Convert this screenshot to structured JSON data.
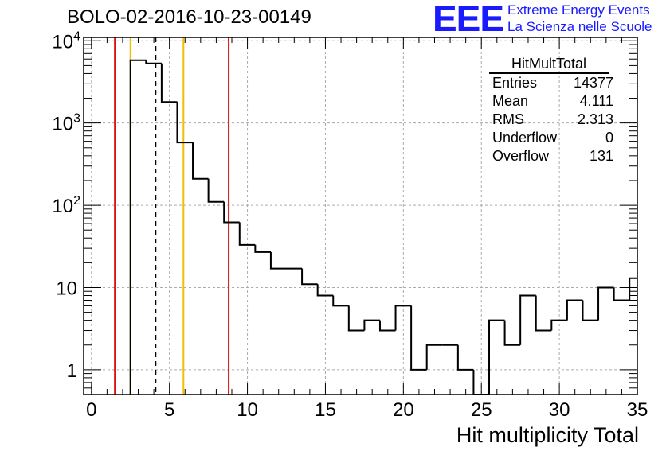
{
  "header": {
    "title": "BOLO-02-2016-10-23-00149",
    "logo_text": "EEE",
    "logo_line1": "Extreme Energy Events",
    "logo_line2": "La Scienza nelle Scuole"
  },
  "stats_box": {
    "title": "HitMultTotal",
    "rows": [
      {
        "key": "Entries",
        "value": "14377"
      },
      {
        "key": "Mean",
        "value": "4.111"
      },
      {
        "key": "RMS",
        "value": "2.313"
      },
      {
        "key": "Underflow",
        "value": "0"
      },
      {
        "key": "Overflow",
        "value": "131"
      }
    ]
  },
  "chart_data": {
    "type": "histogram",
    "title": "BOLO-02-2016-10-23-00149",
    "xlabel": "Hit multiplicity Total",
    "ylabel": "",
    "xlim": [
      -0.5,
      35
    ],
    "ylim": [
      0.5,
      11000
    ],
    "y_scale": "log",
    "grid": true,
    "line_color": "#000000",
    "x_ticks": [
      0,
      5,
      10,
      15,
      20,
      25,
      30,
      35
    ],
    "y_ticks": [
      {
        "value": 1,
        "label": "1"
      },
      {
        "value": 10,
        "label": "10"
      },
      {
        "value": 100,
        "label": "10^2"
      },
      {
        "value": 1000,
        "label": "10^3"
      },
      {
        "value": 10000,
        "label": "10^4"
      }
    ],
    "bin_width": 1,
    "bin_edges_start": 2.5,
    "bins": [
      {
        "x": 3,
        "count": 5800
      },
      {
        "x": 4,
        "count": 5300
      },
      {
        "x": 5,
        "count": 1800
      },
      {
        "x": 6,
        "count": 580
      },
      {
        "x": 7,
        "count": 210
      },
      {
        "x": 8,
        "count": 110
      },
      {
        "x": 9,
        "count": 62
      },
      {
        "x": 10,
        "count": 33
      },
      {
        "x": 11,
        "count": 27
      },
      {
        "x": 12,
        "count": 17
      },
      {
        "x": 13,
        "count": 17
      },
      {
        "x": 14,
        "count": 11
      },
      {
        "x": 15,
        "count": 8
      },
      {
        "x": 16,
        "count": 6
      },
      {
        "x": 17,
        "count": 3
      },
      {
        "x": 18,
        "count": 4
      },
      {
        "x": 19,
        "count": 3
      },
      {
        "x": 20,
        "count": 6
      },
      {
        "x": 21,
        "count": 1
      },
      {
        "x": 22,
        "count": 2
      },
      {
        "x": 23,
        "count": 2
      },
      {
        "x": 24,
        "count": 1
      },
      {
        "x": 25,
        "count": 0
      },
      {
        "x": 26,
        "count": 4
      },
      {
        "x": 27,
        "count": 2
      },
      {
        "x": 28,
        "count": 8
      },
      {
        "x": 29,
        "count": 3
      },
      {
        "x": 30,
        "count": 4
      },
      {
        "x": 31,
        "count": 7
      },
      {
        "x": 32,
        "count": 4
      },
      {
        "x": 33,
        "count": 10
      },
      {
        "x": 34,
        "count": 7
      },
      {
        "x": 35,
        "count": 13
      }
    ],
    "reference_lines": [
      {
        "x": 1.5,
        "color": "#dd1111",
        "style": "solid"
      },
      {
        "x": 2.5,
        "color": "#f0c000",
        "style": "solid"
      },
      {
        "x": 4.111,
        "color": "#000000",
        "style": "dashed"
      },
      {
        "x": 5.9,
        "color": "#f0c000",
        "style": "solid"
      },
      {
        "x": 8.8,
        "color": "#dd1111",
        "style": "solid"
      }
    ]
  }
}
